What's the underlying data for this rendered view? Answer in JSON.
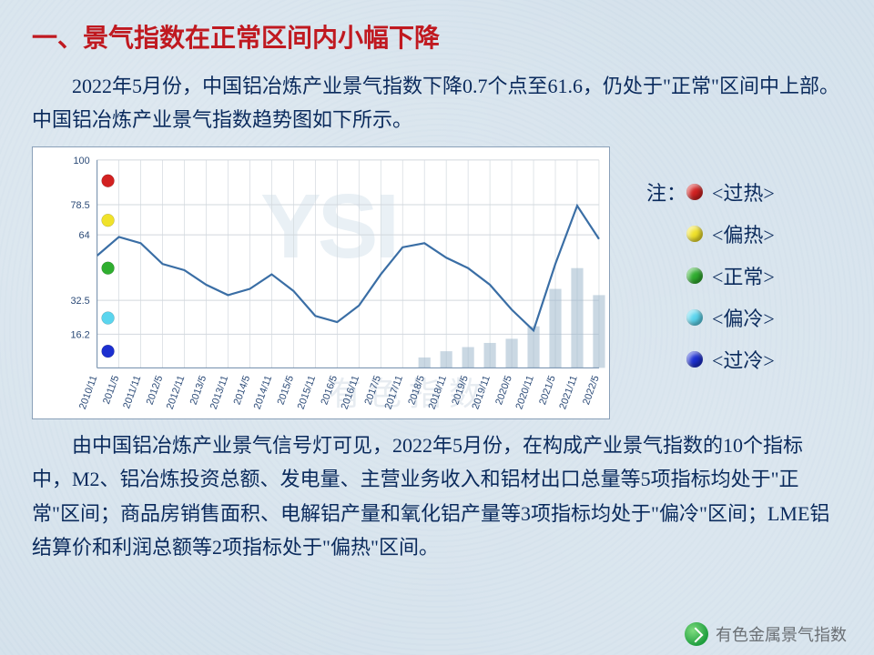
{
  "title": "一、景气指数在正常区间内小幅下降",
  "paragraph_top": "2022年5月份，中国铝冶炼产业景气指数下降0.7个点至61.6，仍处于\"正常\"区间中上部。中国铝冶炼产业景气指数趋势图如下所示。",
  "paragraph_bottom": "由中国铝冶炼产业景气信号灯可见，2022年5月份，在构成产业景气指数的10个指标中，M2、铝冶炼投资总额、发电量、主营业务收入和铝材出口总量等5项指标均处于\"正常\"区间；商品房销售面积、电解铝产量和氧化铝产量等3项指标均处于\"偏冷\"区间；LME铝结算价和利润总额等2项指标处于\"偏热\"区间。",
  "chart": {
    "type": "line",
    "background_color": "#ffffff",
    "border_color": "#8aa0b8",
    "grid_color": "#d2d8de",
    "line_color": "#3a6ea5",
    "bar_color": "#9fb8cc",
    "tick_font_size": 11,
    "tick_color": "#2b4a77",
    "y_ticks": [
      16.2,
      32.5,
      64.0,
      78.5,
      100
    ],
    "ylim": [
      0,
      100
    ],
    "x_labels": [
      "2010/11",
      "2011/5",
      "2011/11",
      "2012/5",
      "2012/11",
      "2013/5",
      "2013/11",
      "2014/5",
      "2014/11",
      "2015/5",
      "2015/11",
      "2016/5",
      "2016/11",
      "2017/5",
      "2017/11",
      "2018/5",
      "2018/11",
      "2019/5",
      "2019/11",
      "2020/5",
      "2020/11",
      "2021/5",
      "2021/11",
      "2022/5"
    ],
    "line_values": [
      54,
      63,
      60,
      50,
      47,
      40,
      35,
      38,
      45,
      37,
      25,
      22,
      30,
      45,
      58,
      60,
      53,
      48,
      40,
      28,
      18,
      50,
      78,
      62
    ],
    "bar_values": [
      0,
      0,
      0,
      0,
      0,
      0,
      0,
      0,
      0,
      0,
      0,
      0,
      0,
      0,
      0,
      5,
      8,
      10,
      12,
      14,
      20,
      38,
      48,
      35
    ],
    "zone_dots": [
      {
        "y": 90,
        "color": "#d22121"
      },
      {
        "y": 71,
        "color": "#f0e22a"
      },
      {
        "y": 48,
        "color": "#2fae2f"
      },
      {
        "y": 24,
        "color": "#5bd5ee"
      },
      {
        "y": 8,
        "color": "#1c2fd0"
      }
    ],
    "watermark_en": "YSI",
    "watermark_cn": "有色指数"
  },
  "legend": {
    "note_label": "注：",
    "items": [
      {
        "color": "#d22121",
        "label": "<过热>"
      },
      {
        "color": "#f0e22a",
        "label": "<偏热>"
      },
      {
        "color": "#2fae2f",
        "label": "<正常>"
      },
      {
        "color": "#5bd5ee",
        "label": "<偏冷>"
      },
      {
        "color": "#1c2fd0",
        "label": "<过冷>"
      }
    ]
  },
  "footer": {
    "brand_text": "有色金属景气指数"
  }
}
